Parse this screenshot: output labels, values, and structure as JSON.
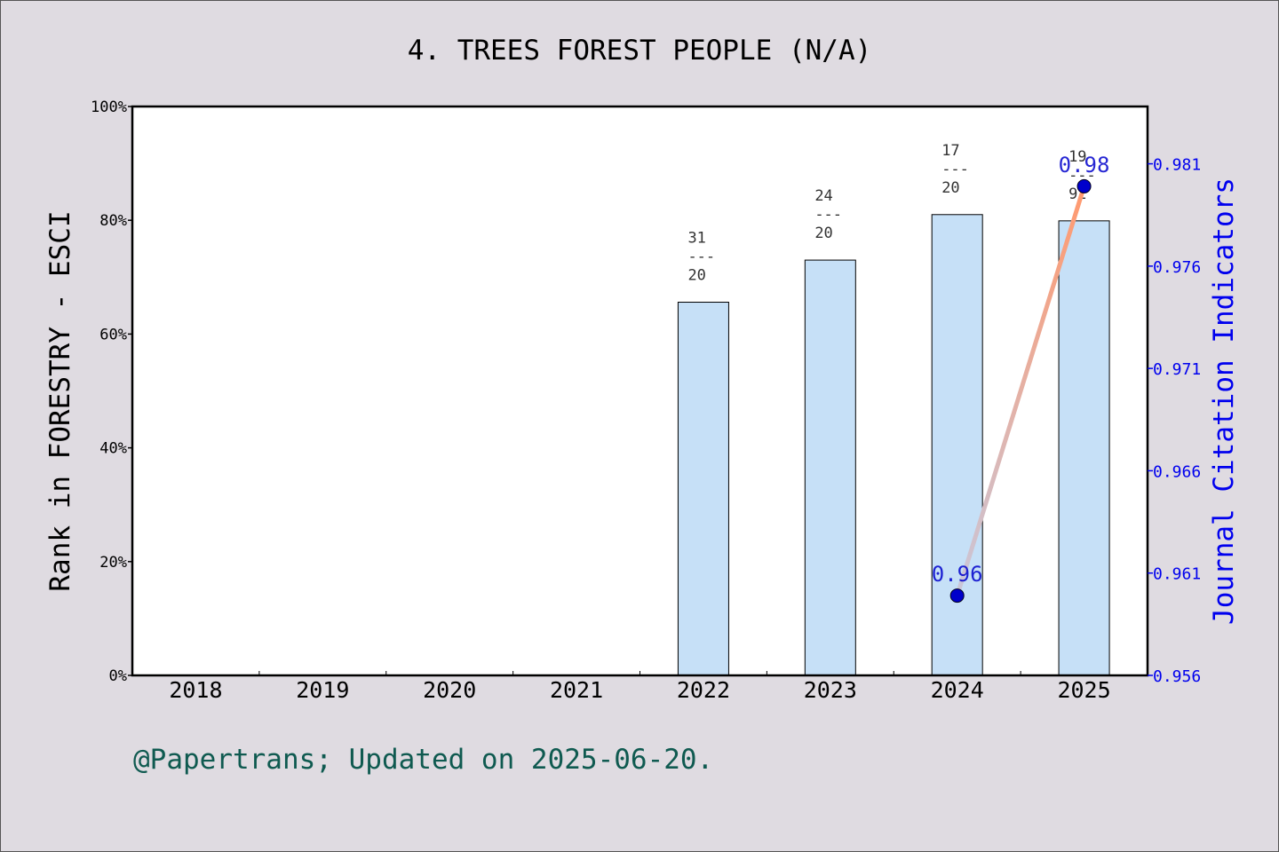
{
  "footer_text": "@Papertrans; Updated on 2025-06-20.",
  "colors": {
    "background": "#dfdbe1",
    "bar_fill": "#c6e0f7",
    "line_start": "#c8c8dc",
    "line_end": "#ff9a70",
    "marker": "#0000cc",
    "right_axis": "#0000ee",
    "footer": "#0f5a50"
  },
  "chart_data": {
    "type": "bar",
    "title": "4. TREES FOREST PEOPLE (N/A)",
    "xlabel": "",
    "ylabel": "Rank in FORESTRY - ESCI",
    "y2label": "Journal Citation Indicators",
    "categories": [
      "2018",
      "2019",
      "2020",
      "2021",
      "2022",
      "2023",
      "2024",
      "2025"
    ],
    "ylim": [
      0,
      100
    ],
    "yticks": [
      "0%",
      "20%",
      "40%",
      "60%",
      "80%",
      "100%"
    ],
    "y2lim": [
      0.956,
      0.9838
    ],
    "y2ticks": [
      "0.956",
      "0.961",
      "0.966",
      "0.971",
      "0.976",
      "0.981"
    ],
    "grid": false,
    "series": [
      {
        "kind": "bar",
        "axis": "left",
        "values": [
          null,
          null,
          null,
          null,
          65.6,
          73.0,
          81.0,
          79.9
        ],
        "labels": [
          null,
          null,
          null,
          null,
          {
            "top": "31",
            "mid": "---",
            "bottom": "20"
          },
          {
            "top": "24",
            "mid": "---",
            "bottom": "20"
          },
          {
            "top": "17",
            "mid": "---",
            "bottom": "20"
          },
          {
            "top": "19",
            "mid": "---",
            "bottom": "92"
          }
        ]
      },
      {
        "kind": "line",
        "axis": "right",
        "values": [
          null,
          null,
          null,
          null,
          null,
          null,
          0.9599,
          0.9799
        ],
        "labels": [
          null,
          null,
          null,
          null,
          null,
          null,
          "0.96",
          "0.98"
        ]
      }
    ]
  }
}
